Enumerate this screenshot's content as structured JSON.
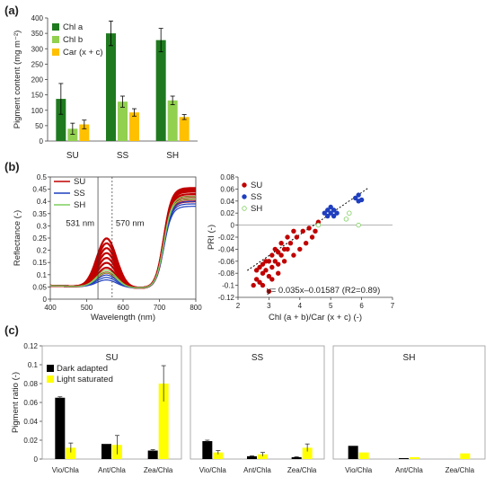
{
  "panels": {
    "a": "(a)",
    "b": "(b)",
    "c": "(c)"
  },
  "colors": {
    "chl_a": "#1f7a1f",
    "chl_b": "#92d050",
    "car": "#ffc000",
    "su": "#c00000",
    "ss": "#1f3fbf",
    "sh": "#7fcf5f",
    "dark": "#000000",
    "light": "#ffff00"
  },
  "chart_data": [
    {
      "id": "a",
      "type": "bar",
      "ylabel": "Pigment content (mg m⁻²)",
      "categories": [
        "SU",
        "SS",
        "SH"
      ],
      "ylim": [
        0,
        400
      ],
      "yticks": [
        0,
        50,
        100,
        150,
        200,
        250,
        300,
        350,
        400
      ],
      "legend_position": "top-left",
      "series": [
        {
          "name": "Chl a",
          "values": [
            137,
            350,
            328
          ],
          "errors": [
            50,
            40,
            38
          ]
        },
        {
          "name": "Chl b",
          "values": [
            40,
            128,
            132
          ],
          "errors": [
            18,
            18,
            14
          ]
        },
        {
          "name": "Car (x + c)",
          "values": [
            54,
            93,
            78
          ],
          "errors": [
            14,
            12,
            8
          ]
        }
      ]
    },
    {
      "id": "b-left",
      "type": "line",
      "ylabel": "Reflectance (-)",
      "xlabel": "Wavelength (nm)",
      "xlim": [
        400,
        800
      ],
      "ylim": [
        0,
        0.5
      ],
      "xticks": [
        400,
        500,
        600,
        700,
        800
      ],
      "yticks": [
        0,
        0.05,
        0.1,
        0.15,
        0.2,
        0.25,
        0.3,
        0.35,
        0.4,
        0.45,
        0.5
      ],
      "markers": [
        {
          "x": 531,
          "label": "531 nm"
        },
        {
          "x": 570,
          "label": "570 nm"
        }
      ],
      "legend_position": "top-left",
      "series": [
        {
          "name": "SU",
          "green_peak": [
            0.24,
            0.22,
            0.2,
            0.18,
            0.16,
            0.14,
            0.12,
            0.1
          ],
          "nir": [
            0.455,
            0.45,
            0.445,
            0.44,
            0.43,
            0.42,
            0.41,
            0.4
          ]
        },
        {
          "name": "SS",
          "green_peak": [
            0.09,
            0.08,
            0.07
          ],
          "nir": [
            0.4,
            0.39,
            0.38
          ]
        },
        {
          "name": "SH",
          "green_peak": [
            0.11,
            0.1
          ],
          "nir": [
            0.42,
            0.41
          ]
        }
      ]
    },
    {
      "id": "b-right",
      "type": "scatter",
      "ylabel": "PRI (-)",
      "xlabel": "Chl (a + b)/Car (x + c) (-)",
      "xlim": [
        2,
        7
      ],
      "ylim": [
        -0.12,
        0.08
      ],
      "xticks": [
        2,
        3,
        4,
        5,
        6,
        7
      ],
      "yticks": [
        -0.12,
        -0.1,
        -0.08,
        -0.06,
        -0.04,
        -0.02,
        0,
        0.02,
        0.04,
        0.06,
        0.08
      ],
      "annotation": "y= 0.035x–0.01587 (R2=0.89)",
      "fit": {
        "slope": 0.035,
        "intercept": -0.01587
      },
      "legend_position": "top-left",
      "series": [
        {
          "name": "SU",
          "points": [
            [
              2.5,
              -0.1
            ],
            [
              2.6,
              -0.09
            ],
            [
              2.7,
              -0.07
            ],
            [
              2.7,
              -0.095
            ],
            [
              2.8,
              -0.08
            ],
            [
              2.8,
              -0.1
            ],
            [
              2.9,
              -0.06
            ],
            [
              2.9,
              -0.075
            ],
            [
              3.0,
              -0.06
            ],
            [
              3.0,
              -0.085
            ],
            [
              3.0,
              -0.11
            ],
            [
              3.1,
              -0.05
            ],
            [
              3.1,
              -0.07
            ],
            [
              3.2,
              -0.04
            ],
            [
              3.2,
              -0.06
            ],
            [
              3.3,
              -0.045
            ],
            [
              3.3,
              -0.08
            ],
            [
              3.4,
              -0.03
            ],
            [
              3.4,
              -0.05
            ],
            [
              3.5,
              -0.04
            ],
            [
              3.5,
              -0.06
            ],
            [
              3.6,
              -0.02
            ],
            [
              3.6,
              -0.04
            ],
            [
              3.7,
              -0.03
            ],
            [
              3.8,
              -0.01
            ],
            [
              3.8,
              -0.05
            ],
            [
              3.9,
              -0.02
            ],
            [
              4.0,
              -0.04
            ],
            [
              4.1,
              -0.01
            ],
            [
              4.2,
              -0.03
            ],
            [
              4.3,
              -0.005
            ],
            [
              4.4,
              -0.02
            ],
            [
              4.5,
              -0.01
            ],
            [
              4.6,
              0.005
            ],
            [
              2.8,
              -0.065
            ],
            [
              3.1,
              -0.09
            ],
            [
              2.6,
              -0.075
            ],
            [
              3.3,
              -0.065
            ]
          ]
        },
        {
          "name": "SS",
          "points": [
            [
              4.8,
              0.02
            ],
            [
              4.9,
              0.015
            ],
            [
              4.9,
              0.025
            ],
            [
              5.0,
              0.02
            ],
            [
              5.0,
              0.03
            ],
            [
              5.1,
              0.015
            ],
            [
              5.1,
              0.025
            ],
            [
              5.2,
              0.02
            ],
            [
              5.8,
              0.045
            ],
            [
              5.9,
              0.05
            ],
            [
              5.9,
              0.04
            ],
            [
              6.0,
              0.042
            ]
          ]
        },
        {
          "name": "SH",
          "points": [
            [
              4.6,
              0.0
            ],
            [
              5.5,
              0.01
            ],
            [
              5.6,
              0.02
            ],
            [
              5.9,
              0.0
            ]
          ]
        }
      ]
    },
    {
      "id": "c",
      "type": "bar",
      "ylabel": "Pigment ratio (-)",
      "ylim": [
        0,
        0.12
      ],
      "yticks": [
        0,
        0.02,
        0.04,
        0.06,
        0.08,
        0.1,
        0.12
      ],
      "categories": [
        "Vio/Chla",
        "Ant/Chla",
        "Zea/Chla"
      ],
      "legend_position": "top-left",
      "legend": [
        "Dark adapted",
        "Light saturated"
      ],
      "panels": [
        {
          "title": "SU",
          "dark": [
            0.065,
            0.016,
            0.009
          ],
          "dark_err": [
            0.001,
            0.0,
            0.001
          ],
          "light": [
            0.012,
            0.015,
            0.08
          ],
          "light_err": [
            0.005,
            0.01,
            0.019
          ]
        },
        {
          "title": "SS",
          "dark": [
            0.019,
            0.003,
            0.002
          ],
          "dark_err": [
            0.001,
            0.0005,
            0.0005
          ],
          "light": [
            0.007,
            0.005,
            0.012
          ],
          "light_err": [
            0.002,
            0.002,
            0.004
          ]
        },
        {
          "title": "SH",
          "dark": [
            0.014,
            0.001,
            0.0
          ],
          "dark_err": [
            0,
            0,
            0
          ],
          "light": [
            0.007,
            0.002,
            0.006
          ],
          "light_err": [
            0,
            0,
            0
          ]
        }
      ]
    }
  ]
}
